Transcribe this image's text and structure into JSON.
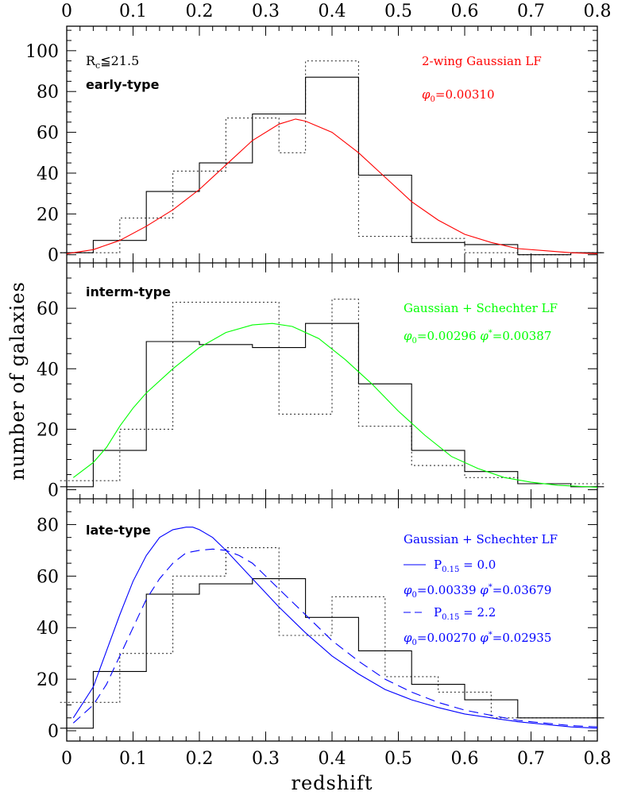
{
  "chart_data": {
    "type": "multi-panel histogram with model curves",
    "xlabel": "redshift",
    "ylabel": "number of galaxies",
    "xlim": [
      0,
      0.8
    ],
    "x_ticks": [
      0,
      0.1,
      0.2,
      0.3,
      0.4,
      0.5,
      0.6,
      0.7,
      0.8
    ],
    "bin_edges": [
      -0.01,
      0.04,
      0.08,
      0.12,
      0.16,
      0.2,
      0.24,
      0.28,
      0.32,
      0.36,
      0.4,
      0.44,
      0.48,
      0.52,
      0.56,
      0.6,
      0.64,
      0.68,
      0.76,
      0.81
    ],
    "panels": [
      {
        "id": "early",
        "label": "early-type",
        "note": {
          "text": "R",
          "sub": "c",
          "rest": "≦21.5"
        },
        "ylim": [
          -4,
          112
        ],
        "y_ticks": [
          0,
          20,
          40,
          60,
          80,
          100
        ],
        "solid_histogram": [
          1,
          7,
          7,
          31,
          31,
          45,
          45,
          69,
          69,
          87,
          87,
          39,
          39,
          6,
          6,
          5,
          5,
          0,
          1
        ],
        "dotted_histogram": [
          1,
          1,
          18,
          18,
          41,
          41,
          67,
          67,
          50,
          95,
          95,
          9,
          9,
          8,
          8,
          1,
          1,
          0,
          1
        ],
        "legend": {
          "color": "#ff0000",
          "title": "2-wing Gaussian LF",
          "lines": [
            {
              "phi0": "0.00310"
            }
          ]
        },
        "curves": [
          {
            "name": "2-wing Gaussian LF",
            "color": "#ff0000",
            "dash": "solid",
            "x": [
              0,
              0.04,
              0.08,
              0.12,
              0.16,
              0.2,
              0.24,
              0.28,
              0.32,
              0.345,
              0.36,
              0.4,
              0.44,
              0.48,
              0.52,
              0.56,
              0.6,
              0.64,
              0.68,
              0.72,
              0.76,
              0.8
            ],
            "y": [
              0.5,
              2.5,
              7,
              14,
              22,
              32,
              44,
              56,
              64,
              66.5,
              65.5,
              60,
              50,
              38,
              26,
              17,
              10,
              6,
              3,
              2,
              1,
              0.5
            ]
          }
        ]
      },
      {
        "id": "interm",
        "label": "interm-type",
        "ylim": [
          -3,
          75
        ],
        "y_ticks": [
          0,
          20,
          40,
          60
        ],
        "solid_histogram": [
          1,
          13,
          13,
          49,
          49,
          48,
          48,
          47,
          47,
          55,
          55,
          35,
          35,
          13,
          13,
          6,
          6,
          2,
          1
        ],
        "dotted_histogram": [
          3,
          3,
          20,
          20,
          62,
          62,
          62,
          62,
          25,
          25,
          63,
          21,
          21,
          8,
          8,
          4,
          4,
          2,
          2
        ],
        "legend": {
          "color": "#00ff00",
          "title": "Gaussian + Schechter LF",
          "lines": [
            {
              "phi0": "0.00296",
              "phistar": "0.00387"
            }
          ]
        },
        "curves": [
          {
            "name": "Gaussian + Schechter LF",
            "color": "#00ff00",
            "dash": "solid",
            "x": [
              0.01,
              0.04,
              0.06,
              0.08,
              0.1,
              0.12,
              0.16,
              0.2,
              0.24,
              0.28,
              0.31,
              0.34,
              0.38,
              0.42,
              0.46,
              0.5,
              0.54,
              0.58,
              0.62,
              0.66,
              0.7,
              0.74,
              0.8
            ],
            "y": [
              4,
              9,
              14,
              21,
              27,
              32,
              40,
              47,
              52,
              54.5,
              55,
              54,
              50,
              43,
              35,
              26,
              18,
              11,
              7,
              4,
              2.5,
              1.5,
              0.8
            ]
          }
        ]
      },
      {
        "id": "late",
        "label": "late-type",
        "ylim": [
          -4,
          90
        ],
        "y_ticks": [
          0,
          20,
          40,
          60,
          80
        ],
        "solid_histogram": [
          1,
          23,
          23,
          53,
          53,
          57,
          57,
          59,
          59,
          44,
          44,
          31,
          31,
          18,
          18,
          12,
          12,
          5,
          5
        ],
        "dotted_histogram": [
          11,
          11,
          30,
          30,
          60,
          60,
          71,
          71,
          37,
          37,
          52,
          52,
          21,
          21,
          15,
          15,
          5,
          5,
          5
        ],
        "legend": {
          "color": "#0000ff",
          "title": "Gaussian + Schechter LF",
          "lines": [
            {
              "style": "solid",
              "P_label": "P",
              "P_sub": "0.15",
              "P_val": "0.0",
              "phi0": "0.00339",
              "phistar": "0.03679"
            },
            {
              "style": "dashed",
              "P_label": "P",
              "P_sub": "0.15",
              "P_val": "2.2",
              "phi0": "0.00270",
              "phistar": "0.02935"
            }
          ]
        },
        "curves": [
          {
            "name": "P0.15 = 0.0",
            "color": "#0000ff",
            "dash": "solid",
            "x": [
              0.01,
              0.04,
              0.06,
              0.08,
              0.1,
              0.12,
              0.14,
              0.16,
              0.18,
              0.19,
              0.2,
              0.22,
              0.24,
              0.28,
              0.32,
              0.36,
              0.4,
              0.44,
              0.48,
              0.52,
              0.56,
              0.6,
              0.64,
              0.68,
              0.72,
              0.76,
              0.8
            ],
            "y": [
              5,
              17,
              31,
              45,
              58,
              68,
              75,
              78,
              79,
              79,
              78,
              75,
              70,
              59,
              48,
              38,
              29,
              22,
              16,
              12,
              9,
              6.5,
              5,
              3.5,
              2.5,
              1.5,
              1
            ]
          },
          {
            "name": "P0.15 = 2.2",
            "color": "#0000ff",
            "dash": "dashed",
            "x": [
              0.01,
              0.04,
              0.06,
              0.08,
              0.1,
              0.12,
              0.14,
              0.16,
              0.18,
              0.2,
              0.22,
              0.24,
              0.26,
              0.28,
              0.32,
              0.36,
              0.4,
              0.44,
              0.48,
              0.52,
              0.56,
              0.6,
              0.64,
              0.68,
              0.72,
              0.76,
              0.8
            ],
            "y": [
              3,
              10,
              18,
              29,
              40,
              51,
              59,
              65,
              69,
              70,
              70.5,
              70,
              68,
              65,
              55,
              45,
              35,
              27,
              20,
              15,
              11,
              8,
              6,
              4,
              3,
              2,
              1.5
            ]
          }
        ]
      }
    ]
  }
}
